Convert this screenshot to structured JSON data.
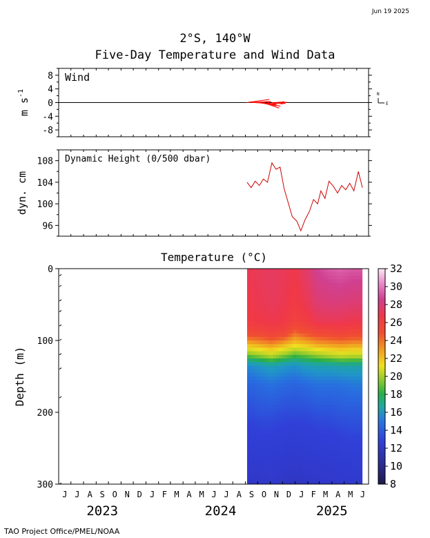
{
  "date_stamp": "Jun 19 2025",
  "title_line1": "2°S, 140°W",
  "title_line2": "Five-Day Temperature and Wind Data",
  "footer": "TAO Project Office/PMEL/NOAA",
  "colors": {
    "wind": "#ff0000",
    "dynamic_height": "#cc0000",
    "axis": "#000000"
  },
  "chart_data": [
    {
      "type": "line",
      "panel": "wind",
      "title": "Wind",
      "ylabel": "m s-1",
      "ylim": [
        -10,
        10
      ],
      "yticks": [
        8,
        4,
        0,
        -4,
        -8
      ],
      "compass_labels": {
        "north": "N",
        "east": "E"
      },
      "vector_start": "2024-09-05",
      "vector_end": "2024-12-05",
      "vectors_note_omitted": false,
      "series": [
        {
          "x": [
            "2024-09-05",
            "2024-09-15",
            "2024-09-25",
            "2024-10-05",
            "2024-10-15",
            "2024-10-25",
            "2024-11-05",
            "2024-11-15",
            "2024-11-25",
            "2024-12-05"
          ],
          "u": [
            -6.5,
            -5.8,
            -6.2,
            -5.0,
            -4.6,
            -3.8,
            -3.2,
            -2.5,
            -1.6,
            -0.8
          ],
          "v": [
            0.9,
            0.3,
            -0.4,
            -0.9,
            -1.6,
            -1.1,
            -0.4,
            0.2,
            -0.3,
            0.1
          ]
        }
      ]
    },
    {
      "type": "line",
      "panel": "dynamic_height",
      "title": "Dynamic Height (0/500 dbar)",
      "ylabel": "dyn. cm",
      "ylim": [
        94,
        110
      ],
      "yticks": [
        108,
        104,
        100,
        96
      ],
      "series": [
        {
          "x": [
            "2024-09-05",
            "2024-09-15",
            "2024-09-25",
            "2024-10-05",
            "2024-10-15",
            "2024-10-25",
            "2024-11-05",
            "2024-11-15",
            "2024-11-25",
            "2024-12-05",
            "2024-12-15",
            "2024-12-25",
            "2025-01-05",
            "2025-01-15",
            "2025-01-25",
            "2025-02-05",
            "2025-02-15",
            "2025-02-25",
            "2025-03-05",
            "2025-03-15",
            "2025-03-25",
            "2025-04-05",
            "2025-04-15",
            "2025-04-25",
            "2025-05-05",
            "2025-05-15",
            "2025-05-25",
            "2025-06-05",
            "2025-06-15"
          ],
          "values": [
            104.0,
            103.0,
            104.2,
            103.4,
            104.6,
            104.0,
            107.6,
            106.4,
            106.8,
            102.8,
            100.2,
            97.6,
            96.8,
            95.0,
            97.0,
            98.6,
            100.8,
            100.0,
            102.4,
            101.0,
            104.2,
            103.2,
            102.0,
            103.4,
            102.6,
            103.8,
            102.4,
            106.0,
            103.0
          ]
        }
      ]
    },
    {
      "type": "heatmap",
      "panel": "temperature",
      "title": "Temperature (°C)",
      "ylabel": "Depth (m)",
      "ylim": [
        300,
        0
      ],
      "yticks": [
        0,
        100,
        200,
        300
      ],
      "x_months": [
        "J",
        "J",
        "A",
        "S",
        "O",
        "N",
        "D",
        "J",
        "F",
        "M",
        "A",
        "M",
        "J",
        "J",
        "A",
        "S",
        "O",
        "N",
        "D",
        "J",
        "F",
        "M",
        "A",
        "M",
        "J"
      ],
      "x_years": [
        {
          "label": "2023"
        },
        {
          "label": "2024"
        },
        {
          "label": "2025"
        }
      ],
      "colorbar_ticks": [
        32,
        30,
        28,
        26,
        24,
        22,
        20,
        18,
        16,
        14,
        12,
        10,
        8
      ],
      "colorbar_range": [
        8,
        32
      ],
      "data_start": "2024-09-05",
      "data_end": "2025-06-15",
      "depth_levels_m": [
        0,
        50,
        75,
        90,
        105,
        120,
        135,
        160,
        200,
        250,
        300
      ],
      "time_columns": [
        "2024-09",
        "2024-10",
        "2024-11",
        "2024-12",
        "2025-01",
        "2025-02",
        "2025-03",
        "2025-04",
        "2025-05",
        "2025-06"
      ],
      "temperatures": [
        [
          26.8,
          27.0,
          27.2,
          27.0,
          26.6,
          27.4,
          28.6,
          29.0,
          29.2,
          29.0
        ],
        [
          26.5,
          26.8,
          27.0,
          26.8,
          26.2,
          26.8,
          27.6,
          27.8,
          27.8,
          27.6
        ],
        [
          26.2,
          26.4,
          26.6,
          26.4,
          25.6,
          26.0,
          26.8,
          26.8,
          26.8,
          26.6
        ],
        [
          25.0,
          25.2,
          25.6,
          25.4,
          24.0,
          24.6,
          25.0,
          25.2,
          25.4,
          25.2
        ],
        [
          22.6,
          23.0,
          23.4,
          22.8,
          22.0,
          22.4,
          23.0,
          23.2,
          23.4,
          23.2
        ],
        [
          19.4,
          20.0,
          20.6,
          19.8,
          19.0,
          19.4,
          20.0,
          20.4,
          20.8,
          20.6
        ],
        [
          16.2,
          16.6,
          17.0,
          16.6,
          16.4,
          16.8,
          17.0,
          17.0,
          17.2,
          17.2
        ],
        [
          15.2,
          15.4,
          15.6,
          15.4,
          15.2,
          15.4,
          15.6,
          15.6,
          15.6,
          15.8
        ],
        [
          14.4,
          14.6,
          14.6,
          14.4,
          14.4,
          14.4,
          14.6,
          14.6,
          14.8,
          14.8
        ],
        [
          13.2,
          13.4,
          13.4,
          13.2,
          13.0,
          13.2,
          13.4,
          13.4,
          13.6,
          13.8
        ],
        [
          11.8,
          12.0,
          12.2,
          11.8,
          11.6,
          11.8,
          12.0,
          12.2,
          12.4,
          12.6
        ]
      ]
    }
  ]
}
